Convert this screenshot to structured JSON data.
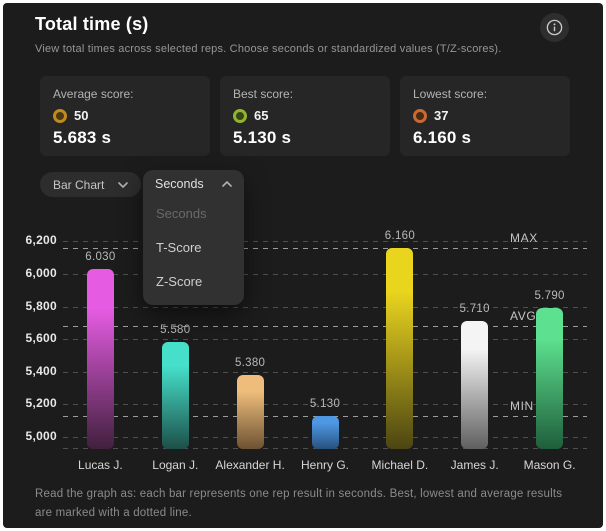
{
  "header": {
    "title": "Total time (s)",
    "subtitle": "View total times across selected reps. Choose seconds or standardized values (T/Z-scores)."
  },
  "stats": [
    {
      "label": "Average score:",
      "score": "50",
      "value": "5.683 s",
      "badge_ring": "#c08b1b",
      "badge_center": "#4a3a12"
    },
    {
      "label": "Best score:",
      "score": "65",
      "value": "5.130 s",
      "badge_ring": "#8fb62e",
      "badge_center": "#3a4416"
    },
    {
      "label": "Lowest score:",
      "score": "37",
      "value": "6.160 s",
      "badge_ring": "#c96a30",
      "badge_center": "#4a2a14"
    }
  ],
  "controls": {
    "chart_type": {
      "value": "Bar Chart"
    },
    "unit_select": {
      "value": "Seconds",
      "open": true,
      "options": [
        {
          "label": "Seconds",
          "selected": true
        },
        {
          "label": "T-Score",
          "selected": false
        },
        {
          "label": "Z-Score",
          "selected": false
        }
      ]
    }
  },
  "chart_data": {
    "type": "bar",
    "title": "Total time (s)",
    "categories": [
      "Lucas J.",
      "Logan J.",
      "Alexander H.",
      "Henry G.",
      "Michael D.",
      "James J.",
      "Mason G."
    ],
    "values": [
      6030,
      5580,
      5380,
      5130,
      6160,
      5710,
      5790
    ],
    "value_labels": [
      "6.030",
      "5.580",
      "5.380",
      "5.130",
      "6.160",
      "5.710",
      "5.790"
    ],
    "bar_colors_top": [
      "#e55ce2",
      "#46e0ca",
      "#eebd7b",
      "#4e97e3",
      "#e9d41e",
      "#f4f4f4",
      "#5de08f"
    ],
    "bar_colors_bottom": [
      "#41203e",
      "#1d4f49",
      "#6d5233",
      "#27517d",
      "#4c4512",
      "#5f5f5f",
      "#1f5e3b"
    ],
    "yticks": [
      5000,
      5200,
      5400,
      5600,
      5800,
      6000,
      6200
    ],
    "ytick_labels": [
      "5,000",
      "5,200",
      "5,400",
      "5,600",
      "5,800",
      "6,000",
      "6,200"
    ],
    "markers": [
      {
        "label": "MAX",
        "value": 6160
      },
      {
        "label": "AVG",
        "value": 5683
      },
      {
        "label": "MIN",
        "value": 5130
      }
    ],
    "ylim": [
      4926,
      6300
    ],
    "grid": "dashed horizontal",
    "legend": false,
    "xlabel": "",
    "ylabel": ""
  },
  "footer": {
    "note": "Read the graph as: each bar represents one rep result in seconds. Best, lowest and average results are marked with a dotted line."
  },
  "colors": {
    "card_bg": "#1c1c1c",
    "stat_card_bg": "#262626",
    "panel_bg": "#313131",
    "gridline": "#4f4f4f",
    "marker_line": "#9d9d9d"
  }
}
